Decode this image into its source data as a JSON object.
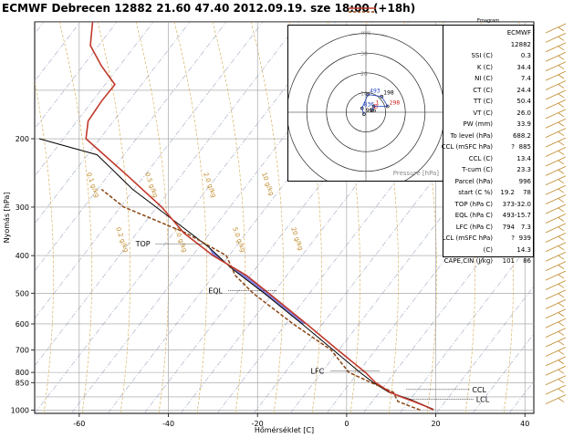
{
  "header": {
    "title": "ECMWF Debrecen 12882  21.60  47.40 2012.09.19. sze 18:00 (+18h)"
  },
  "chart_data": {
    "type": "line",
    "xlabel": "Hőmérséklet [C]",
    "ylabel": "Nyomás [hPa]",
    "xlim": [
      -70,
      42
    ],
    "ylim": [
      1020,
      100
    ],
    "y_scale": "log",
    "x_ticks": [
      "-60",
      "-40",
      "-20",
      "0",
      "20",
      "40"
    ],
    "y_ticks": [
      "200",
      "300",
      "400",
      "500",
      "600",
      "700",
      "800",
      "850",
      "1000"
    ],
    "grid": true,
    "series": [
      {
        "role": "temperature",
        "color": "#c0392b",
        "points": [
          [
            19.5,
            1000
          ],
          [
            17.5,
            975
          ],
          [
            15,
            950
          ],
          [
            12.2,
            925
          ],
          [
            9.8,
            900
          ],
          [
            6.5,
            850
          ],
          [
            4.2,
            800
          ],
          [
            -2,
            700
          ],
          [
            -9,
            600
          ],
          [
            -17.5,
            500
          ],
          [
            -22.5,
            450
          ],
          [
            -30,
            400
          ],
          [
            -36.5,
            350
          ],
          [
            -41.5,
            300
          ],
          [
            -49,
            250
          ],
          [
            -58.5,
            200
          ],
          [
            -58,
            180
          ],
          [
            -55,
            160
          ],
          [
            -52,
            145
          ],
          [
            -55,
            130
          ],
          [
            -57.5,
            115
          ],
          [
            -57,
            100
          ]
        ]
      },
      {
        "role": "dewpoint",
        "color": "#8b4513",
        "points": [
          [
            16.5,
            1000
          ],
          [
            14,
            975
          ],
          [
            11.5,
            950
          ],
          [
            11,
            925
          ],
          [
            10.5,
            900
          ],
          [
            5.5,
            850
          ],
          [
            0.5,
            800
          ],
          [
            -3.5,
            700
          ],
          [
            -12,
            600
          ],
          [
            -21,
            500
          ],
          [
            -25,
            450
          ],
          [
            -27,
            400
          ],
          [
            -36,
            350
          ],
          [
            -50,
            300
          ],
          [
            -55,
            270
          ]
        ]
      },
      {
        "role": "parcel",
        "color": "#000000",
        "points": [
          [
            19.5,
            996
          ],
          [
            14.3,
            939
          ],
          [
            9.5,
            900
          ],
          [
            6,
            850
          ],
          [
            3,
            800
          ],
          [
            -3,
            700
          ],
          [
            -10,
            600
          ],
          [
            -18.5,
            500
          ],
          [
            -26,
            430
          ],
          [
            -31,
            380
          ],
          [
            -38,
            330
          ],
          [
            -48,
            270
          ],
          [
            -56,
            220
          ],
          [
            -69,
            200
          ]
        ]
      }
    ],
    "levels": [
      {
        "label": "TOP",
        "pressure": 373,
        "temperature": -32
      },
      {
        "label": "EQL",
        "pressure": 493,
        "temperature": -15.7
      },
      {
        "label": "LFC",
        "pressure": 794,
        "temperature": 7.3
      },
      {
        "label": "CCL",
        "pressure": 885,
        "temperature": 13.4
      },
      {
        "label": "LCL",
        "pressure": 939,
        "temperature": 14.3
      }
    ],
    "mixing_ratio_labels": [
      "0.1 g/kg",
      "0.2 g/kg",
      "0.5 g/kg",
      "1.0 g/kg",
      "2.0 g/kg",
      "5.0 g/kg",
      "10 g/kg",
      "20 g/kg"
    ],
    "hodograph": {
      "rings": [
        "10",
        "20",
        "30"
      ],
      "unit_label": "m/s",
      "pressure_label": "Pressure [hPa]",
      "points": [
        {
          "label": "996",
          "u": -1,
          "v": -1
        },
        {
          "label": "836",
          "u": -2,
          "v": 2
        },
        {
          "label": "493",
          "u": 1,
          "v": 9
        },
        {
          "label": "198",
          "u": 8,
          "v": 8
        },
        {
          "label": "298",
          "u": 11,
          "v": 3
        },
        {
          "label": "1",
          "u": 4,
          "v": 3
        },
        {
          "label": "D",
          "u": 3,
          "v": 1
        }
      ]
    }
  },
  "indices_panel": {
    "heading": "Emagram",
    "source": "ECMWF",
    "station": "12882",
    "rows": [
      {
        "label": "SSI (C)",
        "v1": "0.3"
      },
      {
        "label": "K (C)",
        "v1": "34.4"
      },
      {
        "label": "NI (C)",
        "v1": "7.4"
      },
      {
        "label": "CT (C)",
        "v1": "24.4"
      },
      {
        "label": "TT (C)",
        "v1": "50.4"
      },
      {
        "label": "VT (C)",
        "v1": "26.0"
      },
      {
        "label": "PW (mm)",
        "v1": "33.9"
      },
      {
        "label": "To level (hPa)",
        "v1": "688.2"
      },
      {
        "label": "CCL (mSFC hPa)",
        "v1": "?",
        "v2": "885"
      },
      {
        "label": "CCL (C)",
        "v1": "13.4"
      },
      {
        "label": "T-cum (C)",
        "v1": "23.3"
      },
      {
        "label": "Parcel (hPa)",
        "v1": "996"
      },
      {
        "label": "start (C  %)",
        "v1": "19.2",
        "v2": "78"
      },
      {
        "label": "TOP (hPa  C)",
        "v1": "373",
        "v2": "-32.0"
      },
      {
        "label": "EQL (hPa  C)",
        "v1": "493",
        "v2": "-15.7"
      },
      {
        "label": "LFC (hPa  C)",
        "v1": "794",
        "v2": "7.3"
      },
      {
        "label": "LCL (mSFC  hPa)",
        "v1": "?",
        "v2": "939"
      },
      {
        "label": "(C)",
        "v1": "14.3"
      },
      {
        "label": "CAPE,CIN (J/kg)",
        "v1": "101",
        "v2": "86"
      }
    ]
  }
}
